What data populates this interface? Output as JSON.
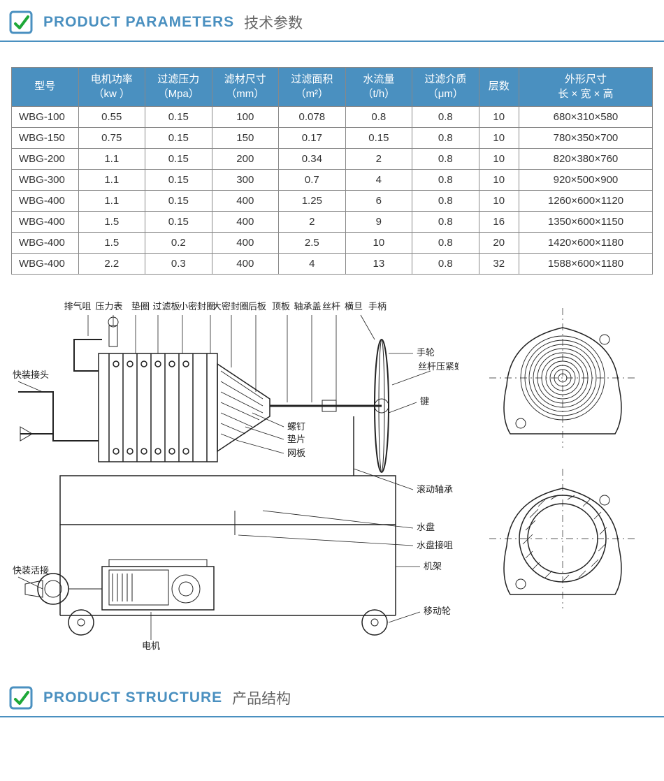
{
  "header1": {
    "title_en": "PRODUCT PARAMETERS",
    "title_zh": "技术参数"
  },
  "header2": {
    "title_en": "PRODUCT STRUCTURE",
    "title_zh": "产品结构"
  },
  "table": {
    "columns": [
      "型号",
      "电机功率\n（kw ）",
      "过滤压力\n（Mpa）",
      "滤材尺寸\n（mm）",
      "过滤面积\n（m²）",
      "水流量\n（t/h）",
      "过滤介质\n（μm）",
      "层数",
      "外形尺寸\n长 × 宽 × 高"
    ],
    "rows": [
      [
        "WBG-100",
        "0.55",
        "0.15",
        "100",
        "0.078",
        "0.8",
        "0.8",
        "10",
        "680×310×580"
      ],
      [
        "WBG-150",
        "0.75",
        "0.15",
        "150",
        "0.17",
        "0.15",
        "0.8",
        "10",
        "780×350×700"
      ],
      [
        "WBG-200",
        "1.1",
        "0.15",
        "200",
        "0.34",
        "2",
        "0.8",
        "10",
        "820×380×760"
      ],
      [
        "WBG-300",
        "1.1",
        "0.15",
        "300",
        "0.7",
        "4",
        "0.8",
        "10",
        "920×500×900"
      ],
      [
        "WBG-400",
        "1.1",
        "0.15",
        "400",
        "1.25",
        "6",
        "0.8",
        "10",
        "1260×600×1120"
      ],
      [
        "WBG-400",
        "1.5",
        "0.15",
        "400",
        "2",
        "9",
        "0.8",
        "16",
        "1350×600×1150"
      ],
      [
        "WBG-400",
        "1.5",
        "0.2",
        "400",
        "2.5",
        "10",
        "0.8",
        "20",
        "1420×600×1180"
      ],
      [
        "WBG-400",
        "2.2",
        "0.3",
        "400",
        "4",
        "13",
        "0.8",
        "32",
        "1588×600×1180"
      ]
    ],
    "header_bg": "#4a90c0",
    "header_fg": "#ffffff",
    "border_color": "#888888"
  },
  "diagram_labels": {
    "top": [
      "排气咀",
      "压力表",
      "垫圈",
      "过滤板",
      "小密封圈",
      "大密封圈",
      "后板",
      "顶板",
      "轴承盖",
      "丝杆",
      "横旦",
      "手柄"
    ],
    "right": [
      "手轮",
      "丝杆压紧螺母",
      "键",
      "滚动轴承",
      "水盘",
      "水盘接咀",
      "机架",
      "移动轮"
    ],
    "mid": [
      "螺钉",
      "垫片",
      "网板"
    ],
    "left": [
      "快装接头",
      "快装活接"
    ],
    "bottom": [
      "电机"
    ]
  },
  "colors": {
    "accent": "#4a90c0",
    "logo_green": "#1ea838",
    "text_gray": "#666666",
    "line": "#222222"
  }
}
